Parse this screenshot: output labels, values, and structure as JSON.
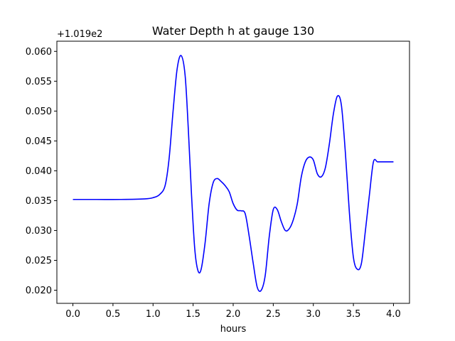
{
  "chart_data": {
    "type": "line",
    "title": "Water Depth h at gauge 130",
    "xlabel": "hours",
    "ylabel": "",
    "y_offset_label": "+1.019e2",
    "xlim": [
      -0.2,
      4.2
    ],
    "ylim": [
      0.0178,
      0.0617
    ],
    "x_ticks": [
      0.0,
      0.5,
      1.0,
      1.5,
      2.0,
      2.5,
      3.0,
      3.5,
      4.0
    ],
    "x_tick_labels": [
      "0.0",
      "0.5",
      "1.0",
      "1.5",
      "2.0",
      "2.5",
      "3.0",
      "3.5",
      "4.0"
    ],
    "y_ticks": [
      0.02,
      0.025,
      0.03,
      0.035,
      0.04,
      0.045,
      0.05,
      0.055,
      0.06
    ],
    "y_tick_labels": [
      "0.020",
      "0.025",
      "0.030",
      "0.035",
      "0.040",
      "0.045",
      "0.050",
      "0.055",
      "0.060"
    ],
    "grid": false,
    "series": [
      {
        "color": "#0000ff",
        "x": [
          0.0,
          0.3,
          0.6,
          0.9,
          1.0,
          1.08,
          1.15,
          1.2,
          1.25,
          1.3,
          1.35,
          1.4,
          1.44,
          1.48,
          1.52,
          1.56,
          1.6,
          1.65,
          1.7,
          1.75,
          1.8,
          1.85,
          1.9,
          1.95,
          2.0,
          2.05,
          2.1,
          2.15,
          2.2,
          2.25,
          2.3,
          2.35,
          2.4,
          2.45,
          2.5,
          2.55,
          2.6,
          2.65,
          2.7,
          2.75,
          2.8,
          2.85,
          2.9,
          2.95,
          3.0,
          3.05,
          3.1,
          3.15,
          3.2,
          3.25,
          3.3,
          3.35,
          3.4,
          3.45,
          3.5,
          3.55,
          3.6,
          3.65,
          3.7,
          3.75,
          3.8,
          3.85,
          3.9,
          3.95,
          4.0
        ],
        "y": [
          0.0352,
          0.0352,
          0.0352,
          0.0353,
          0.0355,
          0.036,
          0.0375,
          0.042,
          0.05,
          0.057,
          0.0593,
          0.056,
          0.047,
          0.036,
          0.027,
          0.0233,
          0.0235,
          0.028,
          0.0345,
          0.038,
          0.0387,
          0.0382,
          0.0375,
          0.0365,
          0.0345,
          0.0334,
          0.0333,
          0.0328,
          0.029,
          0.0245,
          0.0205,
          0.02,
          0.0225,
          0.029,
          0.0335,
          0.0335,
          0.0315,
          0.03,
          0.0303,
          0.0318,
          0.0345,
          0.039,
          0.0415,
          0.0423,
          0.0418,
          0.0395,
          0.039,
          0.0405,
          0.0445,
          0.0495,
          0.0525,
          0.051,
          0.043,
          0.033,
          0.0255,
          0.0235,
          0.0245,
          0.03,
          0.036,
          0.0415,
          0.0415,
          0.0415,
          0.0415,
          0.0415,
          0.0415
        ]
      }
    ]
  }
}
